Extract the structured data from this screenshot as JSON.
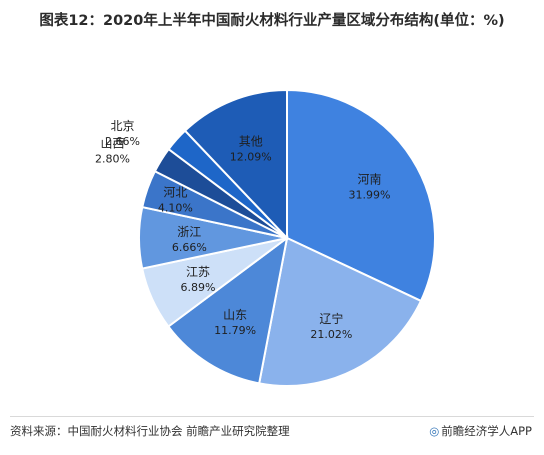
{
  "chart_data": {
    "type": "pie",
    "title": "图表12：2020年上半年中国耐火材料行业产量区域分布结构(单位：%)",
    "slices": [
      {
        "label": "河南",
        "value": 31.99,
        "value_label": "31.99%",
        "color": "#3f82e0",
        "text_color": "#1f1f1f"
      },
      {
        "label": "辽宁",
        "value": 21.02,
        "value_label": "21.02%",
        "color": "#8ab2ec",
        "text_color": "#1f1f1f"
      },
      {
        "label": "山东",
        "value": 11.79,
        "value_label": "11.79%",
        "color": "#4d88d8",
        "text_color": "#1f1f1f"
      },
      {
        "label": "江苏",
        "value": 6.89,
        "value_label": "6.89%",
        "color": "#cde0f8",
        "text_color": "#1f1f1f"
      },
      {
        "label": "浙江",
        "value": 6.66,
        "value_label": "6.66%",
        "color": "#6197df",
        "text_color": "#1f1f1f"
      },
      {
        "label": "河北",
        "value": 4.1,
        "value_label": "4.10%",
        "color": "#3b75c9",
        "text_color": "#1f1f1f"
      },
      {
        "label": "山西",
        "value": 2.8,
        "value_label": "2.80%",
        "color": "#1d4d98",
        "text_color": "#1f1f1f",
        "label_outside": true
      },
      {
        "label": "北京",
        "value": 2.66,
        "value_label": "2.66%",
        "color": "#1e66c8",
        "text_color": "#1f1f1f",
        "label_outside": true
      },
      {
        "label": "其他",
        "value": 12.09,
        "value_label": "12.09%",
        "color": "#1e5cb6",
        "text_color": "#1f1f1f"
      }
    ],
    "legend": "none"
  },
  "footer": {
    "source": "资料来源：中国耐火材料行业协会 前瞻产业研究院整理",
    "brand_logo": "◎",
    "brand": "前瞻经济学人APP"
  },
  "watermark": "前瞻产业研究院"
}
